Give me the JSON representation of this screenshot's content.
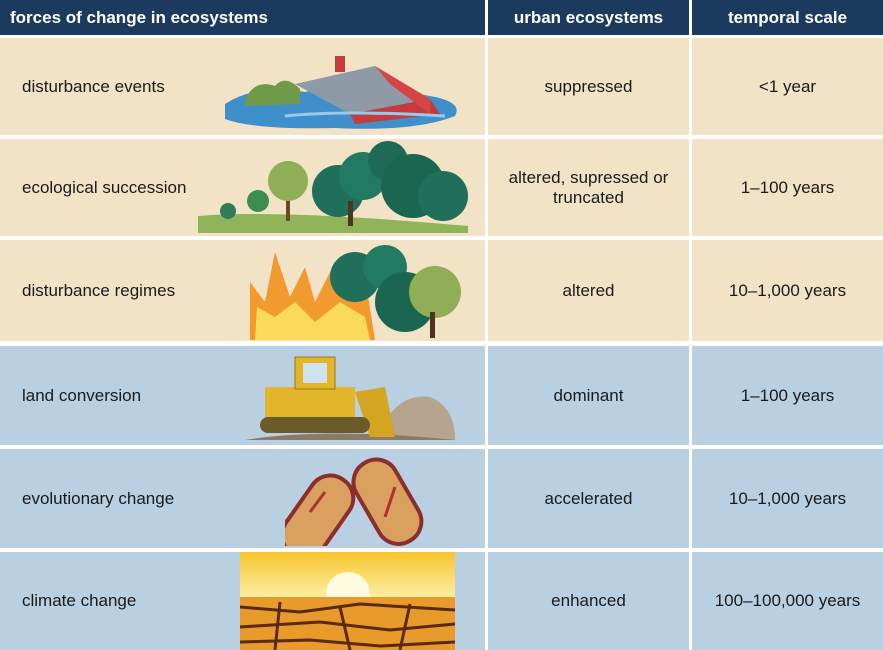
{
  "header": [
    "forces of change in ecosystems",
    "urban ecosystems",
    "temporal scale"
  ],
  "rows": [
    [
      "disturbance events",
      "suppressed",
      "<1 year"
    ],
    [
      "ecological succession",
      "altered, supressed or truncated",
      "1–100 years"
    ],
    [
      "disturbance regimes",
      "altered",
      "10–1,000 years"
    ],
    [
      "land conversion",
      "dominant",
      "1–100 years"
    ],
    [
      "evolutionary change",
      "accelerated",
      "10–1,000 years"
    ],
    [
      "climate change",
      "enhanced",
      "100–100,000 years"
    ]
  ]
}
